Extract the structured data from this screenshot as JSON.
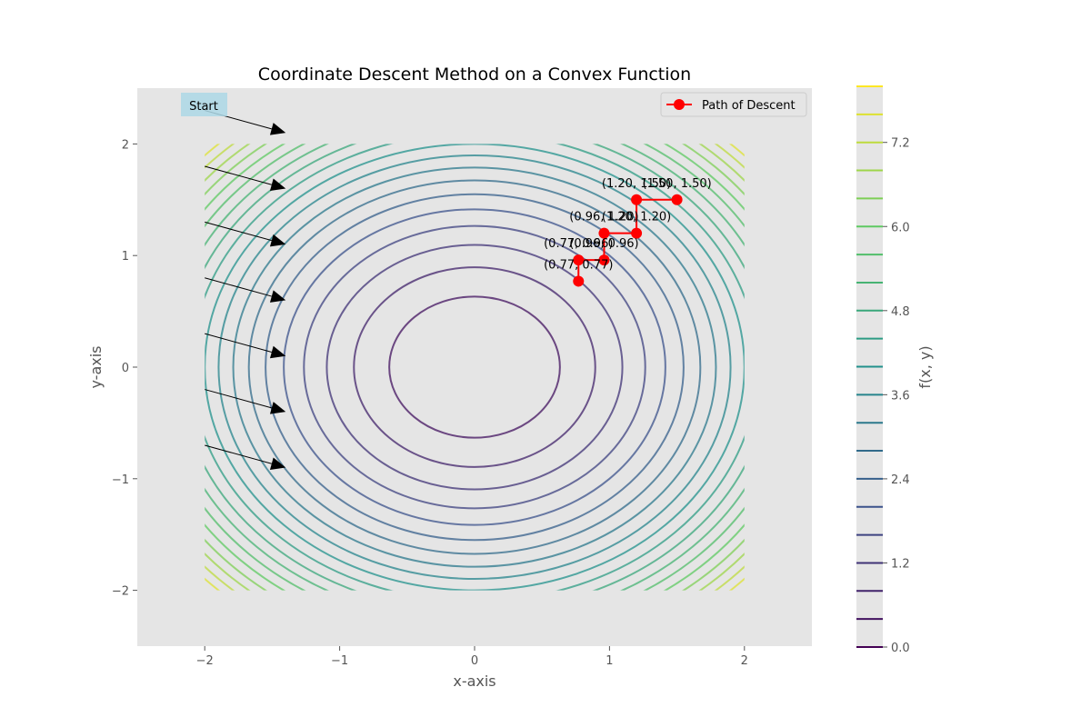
{
  "chart_data": {
    "type": "contour",
    "title": "Coordinate Descent Method on a Convex Function",
    "xlabel": "x-axis",
    "ylabel": "y-axis",
    "xlim": [
      -2.5,
      2.5
    ],
    "ylim": [
      -2.5,
      2.5
    ],
    "x_ticks": [
      -2,
      -1,
      0,
      1,
      2
    ],
    "y_ticks": [
      -2,
      -1,
      0,
      1,
      2
    ],
    "x_tick_labels": [
      "−2",
      "−1",
      "0",
      "1",
      "2"
    ],
    "y_tick_labels": [
      "−2",
      "−1",
      "0",
      "1",
      "2"
    ],
    "grid": false,
    "function": "f(x, y) = x^2 + y^2",
    "domain": {
      "x": [
        -2,
        2
      ],
      "y": [
        -2,
        2
      ]
    },
    "contour_levels": [
      0.4,
      0.8,
      1.2,
      1.6,
      2.0,
      2.4,
      2.8,
      3.2,
      3.6,
      4.0,
      4.4,
      4.8,
      5.2,
      5.6,
      6.0,
      6.4,
      6.8,
      7.2,
      7.6
    ],
    "colorbar": {
      "label": "f(x, y)",
      "range": [
        0.0,
        8.0
      ],
      "ticks": [
        0.0,
        1.2,
        2.4,
        3.6,
        4.8,
        6.0,
        7.2
      ],
      "tick_labels": [
        "0.0",
        "1.2",
        "2.4",
        "3.6",
        "4.8",
        "6.0",
        "7.2"
      ],
      "levels": [
        0.0,
        0.4,
        0.8,
        1.2,
        1.6,
        2.0,
        2.4,
        2.8,
        3.2,
        3.6,
        4.0,
        4.4,
        4.8,
        5.2,
        5.6,
        6.0,
        6.4,
        6.8,
        7.2,
        7.6,
        8.0
      ]
    },
    "series": [
      {
        "name": "Path of Descent",
        "color": "#ff0000",
        "points": [
          {
            "x": 1.5,
            "y": 1.5,
            "label": "(1.50, 1.50)"
          },
          {
            "x": 1.2,
            "y": 1.5,
            "label": "(1.20, 1.50)"
          },
          {
            "x": 1.2,
            "y": 1.2,
            "label": "(1.20, 1.20)"
          },
          {
            "x": 0.96,
            "y": 1.2,
            "label": "(0.96, 1.20)"
          },
          {
            "x": 0.96,
            "y": 0.96,
            "label": "(0.96, 0.96)"
          },
          {
            "x": 0.77,
            "y": 0.96,
            "label": "(0.77, 0.96)"
          },
          {
            "x": 0.77,
            "y": 0.77,
            "label": "(0.77, 0.77)"
          }
        ]
      }
    ],
    "annotation": {
      "text": "Start",
      "background": "#add8e6",
      "arrow_targets": [
        {
          "x": -1.4,
          "y": 2.1
        },
        {
          "x": -1.4,
          "y": 1.6
        },
        {
          "x": -1.4,
          "y": 1.1
        },
        {
          "x": -1.4,
          "y": 0.6
        },
        {
          "x": -1.4,
          "y": 0.1
        },
        {
          "x": -1.4,
          "y": -0.4
        },
        {
          "x": -1.4,
          "y": -0.9
        }
      ],
      "arrow_sources": [
        {
          "x": -2.0,
          "y": 2.3
        },
        {
          "x": -2.0,
          "y": 1.8
        },
        {
          "x": -2.0,
          "y": 1.3
        },
        {
          "x": -2.0,
          "y": 0.8
        },
        {
          "x": -2.0,
          "y": 0.3
        },
        {
          "x": -2.0,
          "y": -0.2
        },
        {
          "x": -2.0,
          "y": -0.7
        }
      ]
    },
    "legend_position": "top-right",
    "colormap": "viridis"
  }
}
